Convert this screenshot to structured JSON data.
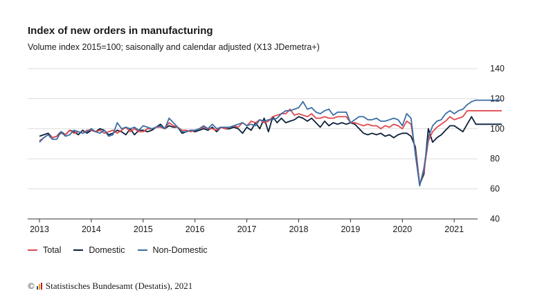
{
  "title": "Index of new orders in manufacturing",
  "subtitle": "Volume index 2015=100; saisonally and calendar adjusted (X13 JDemetra+)",
  "source": {
    "copyright_symbol": "©",
    "logo_icon": "destatis-logo-icon",
    "text": "Statistisches Bundesamt (Destatis), 2021"
  },
  "colors": {
    "total": "#e0474c",
    "domestic": "#0b1f3a",
    "nondomestic": "#3a6ea5",
    "grid": "#dcdcdc",
    "axis": "#333333"
  },
  "legend": [
    {
      "key": "total",
      "label": "Total"
    },
    {
      "key": "domestic",
      "label": "Domestic"
    },
    {
      "key": "nondomestic",
      "label": "Non-Domestic"
    }
  ],
  "chart_data": {
    "type": "line",
    "title": "Index of new orders in manufacturing",
    "subtitle": "Volume index 2015=100; saisonally and calendar adjusted (X13 JDemetra+)",
    "x_start": "2013-01",
    "x_frequency": "monthly",
    "x_ticks": [
      "2013",
      "2014",
      "2015",
      "2016",
      "2017",
      "2018",
      "2019",
      "2020",
      "2021"
    ],
    "ylim": [
      40,
      140
    ],
    "y_ticks": [
      40,
      60,
      80,
      100,
      120,
      140
    ],
    "y_axis_side": "right",
    "grid": true,
    "legend_position": "bottom-left",
    "series": [
      {
        "name": "Total",
        "color_key": "total",
        "values": [
          92,
          94,
          96,
          94,
          95,
          97,
          96,
          99,
          97,
          98,
          97,
          99,
          99,
          98,
          99,
          97,
          98,
          99,
          97,
          99,
          101,
          98,
          100,
          98,
          98,
          100,
          100,
          101,
          101,
          100,
          104,
          102,
          101,
          99,
          99,
          98,
          99,
          100,
          101,
          100,
          100,
          99,
          101,
          100,
          101,
          102,
          101,
          104,
          102,
          105,
          104,
          106,
          104,
          105,
          108,
          109,
          110,
          110,
          113,
          109,
          110,
          109,
          108,
          110,
          107,
          107,
          108,
          107,
          107,
          108,
          108,
          108,
          104,
          104,
          103,
          102,
          103,
          102,
          102,
          100,
          102,
          101,
          103,
          102,
          100,
          105,
          103,
          85,
          63,
          72,
          92,
          98,
          101,
          103,
          105,
          108,
          106,
          107,
          108,
          112,
          112,
          112,
          112,
          112,
          112,
          112,
          112,
          112
        ]
      },
      {
        "name": "Domestic",
        "color_key": "domestic",
        "values": [
          95,
          96,
          97,
          94,
          95,
          98,
          96,
          99,
          98,
          96,
          99,
          97,
          99,
          98,
          100,
          99,
          96,
          97,
          99,
          98,
          96,
          100,
          96,
          99,
          99,
          98,
          99,
          101,
          103,
          100,
          102,
          101,
          101,
          97,
          98,
          99,
          98,
          99,
          100,
          99,
          101,
          98,
          101,
          100,
          100,
          101,
          100,
          97,
          101,
          99,
          104,
          100,
          107,
          98,
          108,
          104,
          107,
          104,
          105,
          106,
          108,
          107,
          105,
          107,
          104,
          101,
          105,
          102,
          104,
          103,
          104,
          103,
          104,
          103,
          100,
          97,
          96,
          97,
          96,
          97,
          95,
          96,
          94,
          96,
          97,
          97,
          95,
          88,
          63,
          70,
          100,
          91,
          94,
          96,
          99,
          102,
          102,
          100,
          98,
          103,
          108,
          103,
          103,
          103,
          103,
          103,
          103,
          103
        ]
      },
      {
        "name": "Non-Domestic",
        "color_key": "nondomestic",
        "values": [
          91,
          94,
          96,
          93,
          93,
          98,
          95,
          96,
          99,
          98,
          97,
          98,
          100,
          98,
          97,
          99,
          95,
          96,
          104,
          100,
          101,
          100,
          101,
          99,
          102,
          101,
          100,
          101,
          102,
          100,
          107,
          104,
          101,
          98,
          98,
          99,
          99,
          100,
          102,
          100,
          103,
          100,
          101,
          101,
          101,
          102,
          103,
          104,
          102,
          103,
          102,
          106,
          105,
          106,
          106,
          107,
          110,
          112,
          112,
          113,
          114,
          118,
          113,
          114,
          111,
          110,
          112,
          113,
          109,
          111,
          111,
          111,
          104,
          106,
          108,
          108,
          106,
          106,
          107,
          105,
          105,
          106,
          107,
          106,
          102,
          110,
          107,
          83,
          62,
          74,
          94,
          102,
          105,
          106,
          110,
          112,
          110,
          112,
          113,
          116,
          118,
          119,
          119,
          119,
          119,
          119,
          119,
          119
        ]
      }
    ]
  }
}
